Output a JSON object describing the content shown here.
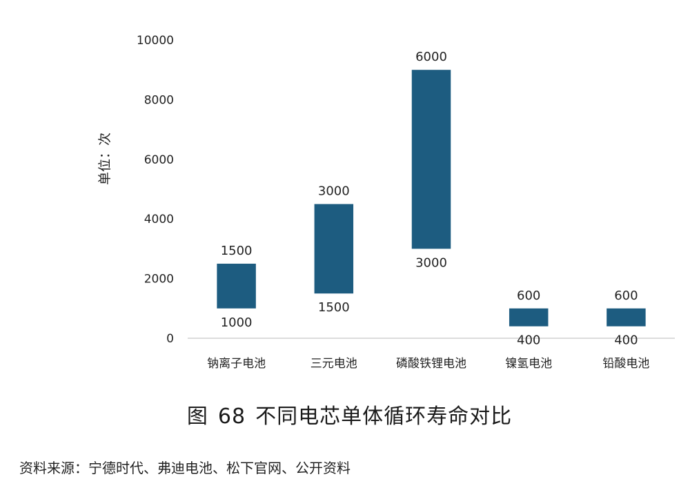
{
  "chart_data": {
    "type": "bar",
    "subtype": "floating-range",
    "categories": [
      "钠离子电池",
      "三元电池",
      "磷酸铁锂电池",
      "镍氢电池",
      "铅酸电池"
    ],
    "low": [
      1000,
      1500,
      3000,
      400,
      400
    ],
    "high": [
      2500,
      4500,
      9000,
      1000,
      1000
    ],
    "bottom_labels": [
      "1000",
      "1500",
      "3000",
      "400",
      "400"
    ],
    "top_labels": [
      "1500",
      "3000",
      "6000",
      "600",
      "600"
    ],
    "ylabel": "单位：次",
    "ylim": [
      0,
      10000
    ],
    "yticks": [
      0,
      2000,
      4000,
      6000,
      8000,
      10000
    ],
    "grid": false,
    "legend": "none",
    "bar_color": "#1d5c80"
  },
  "figure": {
    "label": "图",
    "number": "68",
    "title": "不同电芯单体循环寿命对比"
  },
  "source": "资料来源：宁德时代、弗迪电池、松下官网、公开资料"
}
